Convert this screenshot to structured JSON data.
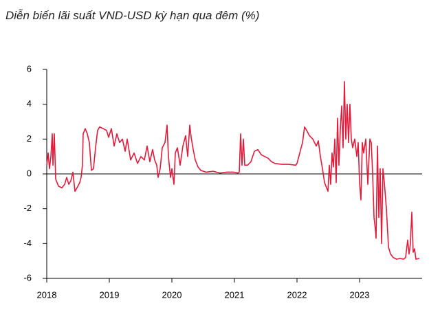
{
  "chart_data": {
    "type": "line",
    "title": "Diễn biến lãi suất VND-USD kỳ hạn qua đêm (%)",
    "x": [
      2018.0,
      2018.022,
      2018.044,
      2018.066,
      2018.088,
      2018.099,
      2018.121,
      2018.143,
      2018.187,
      2018.242,
      2018.286,
      2018.319,
      2018.352,
      2018.385,
      2018.418,
      2018.451,
      2018.484,
      2018.527,
      2018.549,
      2018.571,
      2018.582,
      2018.615,
      2018.648,
      2018.681,
      2018.714,
      2018.747,
      2018.78,
      2018.813,
      2018.846,
      2018.901,
      2018.956,
      2018.989,
      2019.033,
      2019.077,
      2019.121,
      2019.165,
      2019.209,
      2019.253,
      2019.286,
      2019.341,
      2019.396,
      2019.451,
      2019.505,
      2019.56,
      2019.604,
      2019.648,
      2019.692,
      2019.725,
      2019.758,
      2019.78,
      2019.813,
      2019.846,
      2019.89,
      2019.923,
      2019.945,
      2019.978,
      2020.0,
      2020.033,
      2020.055,
      2020.088,
      2020.132,
      2020.176,
      2020.22,
      2020.253,
      2020.286,
      2020.308,
      2020.341,
      2020.374,
      2020.418,
      2020.462,
      2020.549,
      2020.659,
      2020.769,
      2020.879,
      2020.989,
      2021.055,
      2021.077,
      2021.099,
      2021.121,
      2021.143,
      2021.165,
      2021.209,
      2021.264,
      2021.319,
      2021.374,
      2021.429,
      2021.484,
      2021.538,
      2021.593,
      2021.648,
      2021.758,
      2021.868,
      2021.978,
      2022.0,
      2022.044,
      2022.088,
      2022.121,
      2022.154,
      2022.198,
      2022.253,
      2022.308,
      2022.341,
      2022.374,
      2022.407,
      2022.44,
      2022.473,
      2022.495,
      2022.516,
      2022.538,
      2022.56,
      2022.582,
      2022.604,
      2022.626,
      2022.648,
      2022.67,
      2022.692,
      2022.714,
      2022.736,
      2022.758,
      2022.78,
      2022.802,
      2022.824,
      2022.846,
      2022.868,
      2022.89,
      2022.923,
      2022.956,
      2022.978,
      2023.0,
      2023.022,
      2023.044,
      2023.066,
      2023.099,
      2023.132,
      2023.165,
      2023.187,
      2023.209,
      2023.231,
      2023.253,
      2023.264,
      2023.286,
      2023.308,
      2023.33,
      2023.352,
      2023.374,
      2023.396,
      2023.429,
      2023.462,
      2023.495,
      2023.538,
      2023.593,
      2023.648,
      2023.703,
      2023.736,
      2023.769,
      2023.791,
      2023.813,
      2023.835,
      2023.857,
      2023.879,
      2023.901,
      2023.956
    ],
    "series": [
      {
        "color": "#e31b3b",
        "values": [
          0.5,
          1.2,
          0.3,
          1.0,
          2.3,
          0.5,
          2.3,
          -0.3,
          -0.7,
          -0.8,
          -0.6,
          -0.2,
          -0.6,
          -0.4,
          0.1,
          -1.0,
          -0.8,
          -0.5,
          -0.2,
          0.5,
          2.3,
          2.6,
          2.3,
          1.8,
          0.2,
          0.3,
          1.5,
          2.5,
          2.7,
          2.6,
          2.5,
          2.1,
          2.6,
          1.6,
          2.3,
          1.8,
          2.0,
          1.3,
          2.0,
          0.8,
          1.2,
          0.6,
          1.0,
          0.8,
          1.6,
          0.7,
          1.4,
          0.8,
          0.5,
          -0.2,
          0.3,
          1.5,
          1.8,
          2.8,
          1.0,
          -0.2,
          0.3,
          -0.6,
          1.2,
          1.5,
          0.5,
          1.6,
          2.2,
          1.0,
          2.8,
          2.1,
          1.4,
          0.8,
          0.4,
          0.2,
          0.1,
          0.15,
          0.05,
          0.1,
          0.1,
          0.05,
          0.1,
          2.3,
          0.5,
          2.0,
          0.5,
          0.5,
          0.7,
          1.3,
          1.4,
          1.1,
          1.0,
          0.9,
          0.7,
          0.6,
          0.55,
          0.55,
          0.5,
          0.6,
          1.2,
          1.8,
          2.7,
          2.5,
          2.2,
          2.0,
          1.6,
          1.9,
          1.0,
          0.3,
          -0.5,
          -0.8,
          -1.0,
          0.5,
          -0.6,
          1.2,
          0.4,
          2.0,
          -0.5,
          3.2,
          0.5,
          2.5,
          3.9,
          1.5,
          5.3,
          2.0,
          4.0,
          1.8,
          4.0,
          2.0,
          1.5,
          2.0,
          1.0,
          1.8,
          -0.5,
          -1.5,
          1.8,
          1.2,
          2.0,
          -0.6,
          2.0,
          1.8,
          0.0,
          -2.5,
          -3.2,
          -3.7,
          1.6,
          -2.5,
          0.3,
          -4.0,
          0.3,
          -0.5,
          -2.0,
          -4.2,
          -4.6,
          -4.8,
          -4.9,
          -4.85,
          -4.9,
          -4.8,
          -3.8,
          -4.6,
          -4.0,
          -2.2,
          -4.5,
          -4.3,
          -4.9,
          -4.85
        ]
      }
    ],
    "xlim": [
      2018,
      2024
    ],
    "xticks": [
      2018,
      2019,
      2020,
      2021,
      2022,
      2023
    ],
    "ylim": [
      -6,
      6
    ],
    "yticks": [
      -6,
      -4,
      -2,
      0,
      2,
      4,
      6
    ]
  }
}
